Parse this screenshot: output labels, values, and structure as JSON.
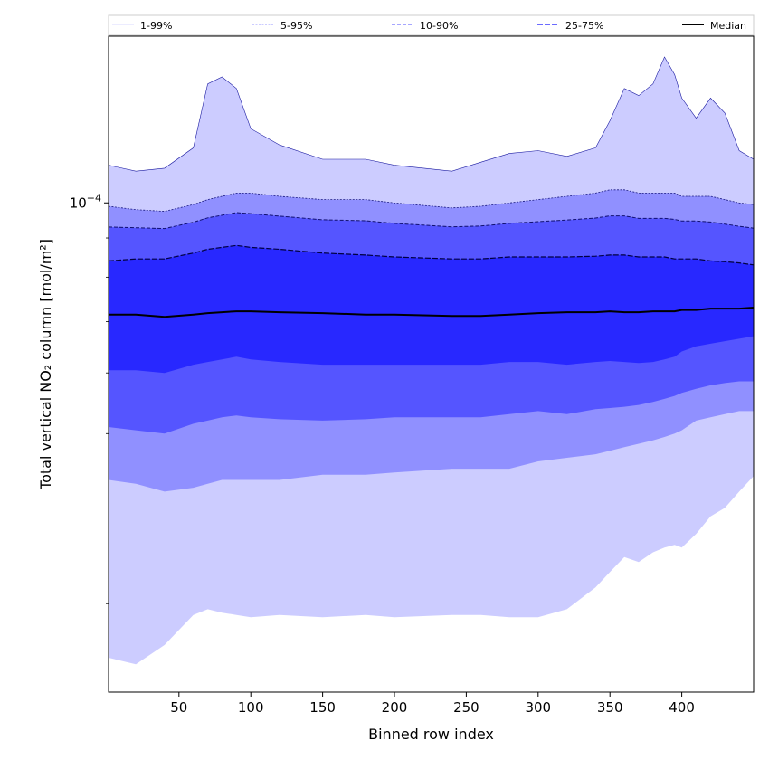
{
  "chart_data": {
    "type": "area",
    "xlabel": "Binned row index",
    "ylabel": "Total vertical NO₂ column [mol/m²]",
    "x_ticks": [
      "50",
      "100",
      "150",
      "200",
      "250",
      "300",
      "350",
      "400"
    ],
    "y_tick_label": "10^-4",
    "xlim": [
      1,
      450
    ],
    "ylim": [
      2.3e-05,
      0.000165
    ],
    "y_scale": "log",
    "legend_position": "top",
    "legend": [
      "1-99%",
      "5-95%",
      "10-90%",
      "25-75%",
      "Median"
    ],
    "x": [
      1,
      20,
      40,
      60,
      70,
      80,
      90,
      100,
      120,
      150,
      180,
      200,
      240,
      260,
      280,
      300,
      320,
      340,
      350,
      360,
      370,
      380,
      388,
      395,
      400,
      410,
      420,
      430,
      440,
      450
    ],
    "series": [
      {
        "name": "1-99%",
        "color": "#ccccff",
        "lower": [
          2.55e-05,
          2.5e-05,
          2.65e-05,
          2.9e-05,
          2.95e-05,
          2.92e-05,
          2.9e-05,
          2.88e-05,
          2.9e-05,
          2.88e-05,
          2.9e-05,
          2.88e-05,
          2.9e-05,
          2.9e-05,
          2.88e-05,
          2.88e-05,
          2.95e-05,
          3.15e-05,
          3.3e-05,
          3.45e-05,
          3.4e-05,
          3.5e-05,
          3.55e-05,
          3.58e-05,
          3.55e-05,
          3.7e-05,
          3.9e-05,
          4e-05,
          4.2e-05,
          4.4e-05
        ],
        "upper": [
          0.000112,
          0.00011,
          0.000111,
          0.000118,
          0.000143,
          0.000146,
          0.000141,
          0.000125,
          0.000119,
          0.000114,
          0.000114,
          0.000112,
          0.00011,
          0.000113,
          0.000116,
          0.000117,
          0.000115,
          0.000118,
          0.000128,
          0.000141,
          0.000138,
          0.000143,
          0.000155,
          0.000147,
          0.000137,
          0.000129,
          0.000137,
          0.000131,
          0.000117,
          0.000114
        ]
      },
      {
        "name": "5-95%",
        "color": "#9090ff",
        "lower": [
          4.35e-05,
          4.3e-05,
          4.2e-05,
          4.25e-05,
          4.3e-05,
          4.35e-05,
          4.35e-05,
          4.35e-05,
          4.35e-05,
          4.42e-05,
          4.42e-05,
          4.45e-05,
          4.5e-05,
          4.5e-05,
          4.5e-05,
          4.6e-05,
          4.65e-05,
          4.7e-05,
          4.75e-05,
          4.8e-05,
          4.85e-05,
          4.9e-05,
          4.95e-05,
          5e-05,
          5.05e-05,
          5.2e-05,
          5.25e-05,
          5.3e-05,
          5.35e-05,
          5.35e-05
        ],
        "upper": [
          9.9e-05,
          9.8e-05,
          9.75e-05,
          9.95e-05,
          0.000101,
          0.000102,
          0.000103,
          0.000103,
          0.000102,
          0.000101,
          0.000101,
          0.0001,
          9.85e-05,
          9.9e-05,
          0.0001,
          0.000101,
          0.000102,
          0.000103,
          0.000104,
          0.000104,
          0.000103,
          0.000103,
          0.000103,
          0.000103,
          0.000102,
          0.000102,
          0.000102,
          0.000101,
          0.0001,
          9.95e-05
        ]
      },
      {
        "name": "10-90%",
        "color": "#5555ff",
        "lower": [
          5.1e-05,
          5.05e-05,
          5e-05,
          5.15e-05,
          5.2e-05,
          5.25e-05,
          5.28e-05,
          5.25e-05,
          5.22e-05,
          5.2e-05,
          5.22e-05,
          5.25e-05,
          5.25e-05,
          5.25e-05,
          5.3e-05,
          5.35e-05,
          5.3e-05,
          5.38e-05,
          5.4e-05,
          5.42e-05,
          5.45e-05,
          5.5e-05,
          5.55e-05,
          5.6e-05,
          5.65e-05,
          5.72e-05,
          5.78e-05,
          5.82e-05,
          5.85e-05,
          5.85e-05
        ]
      },
      {
        "name": "25-75%",
        "color": "#2828ff",
        "lower": [
          6.05e-05,
          6.05e-05,
          6e-05,
          6.15e-05,
          6.2e-05,
          6.25e-05,
          6.3e-05,
          6.25e-05,
          6.2e-05,
          6.15e-05,
          6.15e-05,
          6.15e-05,
          6.15e-05,
          6.15e-05,
          6.2e-05,
          6.2e-05,
          6.15e-05,
          6.2e-05,
          6.22e-05,
          6.2e-05,
          6.18e-05,
          6.2e-05,
          6.25e-05,
          6.3e-05,
          6.4e-05,
          6.5e-05,
          6.55e-05,
          6.6e-05,
          6.65e-05,
          6.7e-05
        ],
        "upper": [
          8.4e-05,
          8.45e-05,
          8.45e-05,
          8.6e-05,
          8.7e-05,
          8.75e-05,
          8.8e-05,
          8.75e-05,
          8.7e-05,
          8.6e-05,
          8.55e-05,
          8.5e-05,
          8.45e-05,
          8.45e-05,
          8.5e-05,
          8.5e-05,
          8.5e-05,
          8.52e-05,
          8.55e-05,
          8.55e-05,
          8.5e-05,
          8.5e-05,
          8.5e-05,
          8.45e-05,
          8.45e-05,
          8.45e-05,
          8.4e-05,
          8.38e-05,
          8.35e-05,
          8.3e-05
        ]
      },
      {
        "name": "Median",
        "color": "#000000",
        "values": [
          7.15e-05,
          7.15e-05,
          7.1e-05,
          7.15e-05,
          7.18e-05,
          7.2e-05,
          7.22e-05,
          7.22e-05,
          7.2e-05,
          7.18e-05,
          7.15e-05,
          7.15e-05,
          7.12e-05,
          7.12e-05,
          7.15e-05,
          7.18e-05,
          7.2e-05,
          7.2e-05,
          7.22e-05,
          7.2e-05,
          7.2e-05,
          7.22e-05,
          7.22e-05,
          7.22e-05,
          7.25e-05,
          7.25e-05,
          7.28e-05,
          7.28e-05,
          7.28e-05,
          7.3e-05
        ]
      }
    ]
  }
}
